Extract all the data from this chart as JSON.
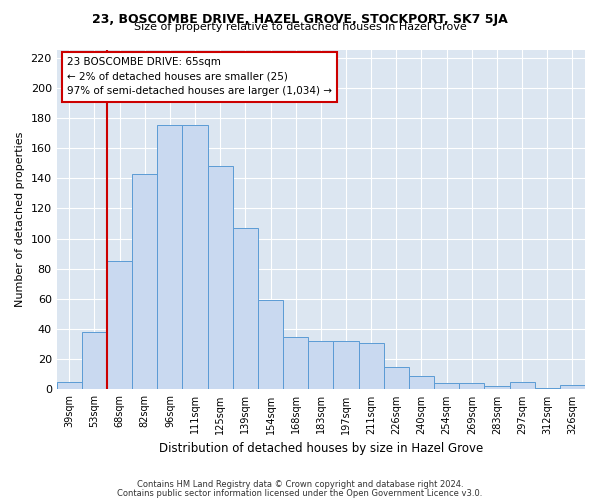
{
  "title_line1": "23, BOSCOMBE DRIVE, HAZEL GROVE, STOCKPORT, SK7 5JA",
  "title_line2": "Size of property relative to detached houses in Hazel Grove",
  "xlabel": "Distribution of detached houses by size in Hazel Grove",
  "ylabel": "Number of detached properties",
  "footnote1": "Contains HM Land Registry data © Crown copyright and database right 2024.",
  "footnote2": "Contains public sector information licensed under the Open Government Licence v3.0.",
  "categories": [
    "39sqm",
    "53sqm",
    "68sqm",
    "82sqm",
    "96sqm",
    "111sqm",
    "125sqm",
    "139sqm",
    "154sqm",
    "168sqm",
    "183sqm",
    "197sqm",
    "211sqm",
    "226sqm",
    "240sqm",
    "254sqm",
    "269sqm",
    "283sqm",
    "297sqm",
    "312sqm",
    "326sqm"
  ],
  "values": [
    5,
    38,
    85,
    143,
    175,
    175,
    148,
    107,
    59,
    35,
    32,
    32,
    31,
    15,
    9,
    4,
    4,
    2,
    5,
    1,
    3
  ],
  "bar_color": "#c9d9f0",
  "bar_edge_color": "#5b9bd5",
  "grid_color": "#ffffff",
  "bg_color": "#dce6f1",
  "fig_bg_color": "#ffffff",
  "annotation_line1": "23 BOSCOMBE DRIVE: 65sqm",
  "annotation_line2": "← 2% of detached houses are smaller (25)",
  "annotation_line3": "97% of semi-detached houses are larger (1,034) →",
  "annotation_box_color": "#ffffff",
  "annotation_box_edge_color": "#cc0000",
  "vline_color": "#cc0000",
  "vline_x": 1.5,
  "ylim": [
    0,
    225
  ],
  "yticks": [
    0,
    20,
    40,
    60,
    80,
    100,
    120,
    140,
    160,
    180,
    200,
    220
  ]
}
